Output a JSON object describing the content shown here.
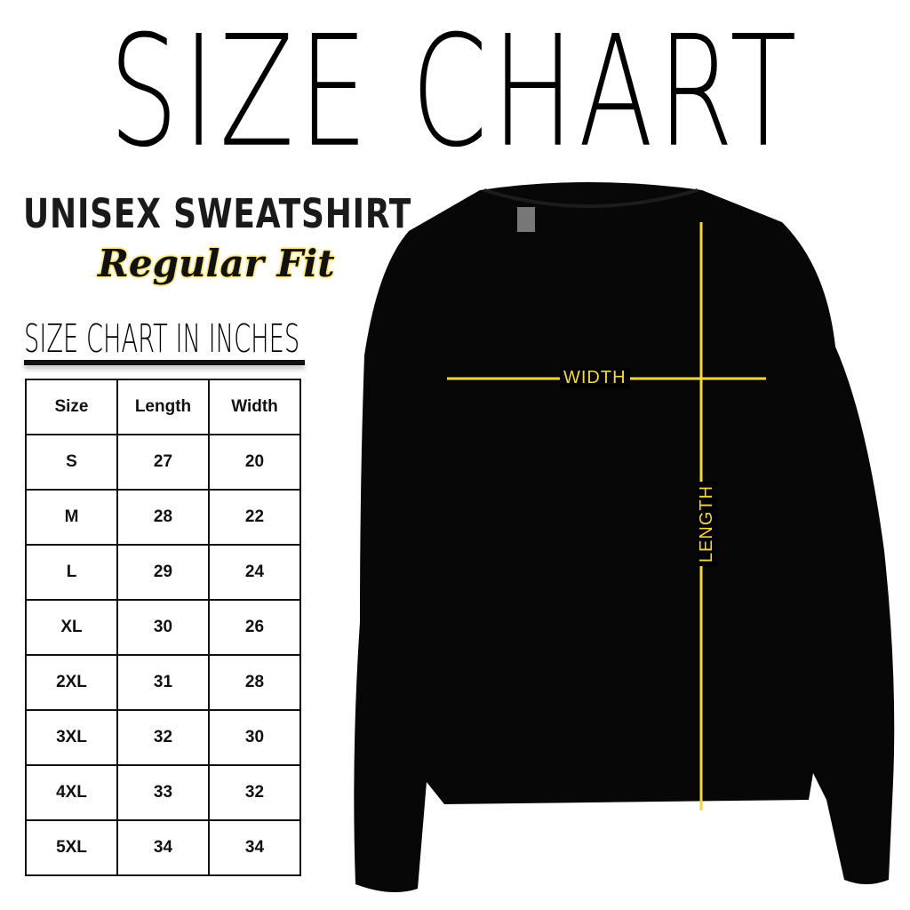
{
  "title": "SIZE CHART",
  "product": "UNISEX SWEATSHIRT",
  "fit": "Regular Fit",
  "table_title": "SIZE CHART IN INCHES",
  "colors": {
    "accent": "#f5d742",
    "garment": "#000000"
  },
  "table": {
    "headers": [
      "Size",
      "Length",
      "Width"
    ],
    "rows": [
      [
        "S",
        "27",
        "20"
      ],
      [
        "M",
        "28",
        "22"
      ],
      [
        "L",
        "29",
        "24"
      ],
      [
        "XL",
        "30",
        "26"
      ],
      [
        "2XL",
        "31",
        "28"
      ],
      [
        "3XL",
        "32",
        "30"
      ],
      [
        "4XL",
        "33",
        "32"
      ],
      [
        "5XL",
        "34",
        "34"
      ]
    ]
  },
  "diagram": {
    "width_label": "WIDTH",
    "length_label": "LENGTH"
  }
}
